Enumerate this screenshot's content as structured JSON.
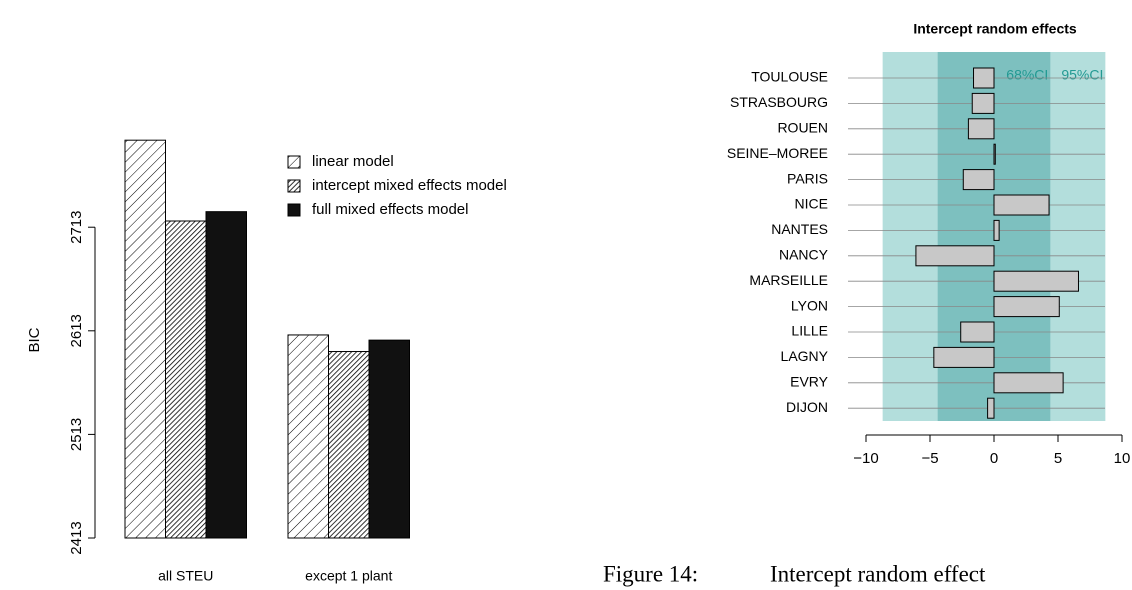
{
  "chart_data": [
    {
      "type": "bar",
      "y_label": "BIC",
      "categories": [
        "all STEU",
        "except 1 plant"
      ],
      "series": [
        {
          "name": "linear model",
          "color": "#000000",
          "pattern": "sparse-hatch",
          "values": [
            2797,
            2609
          ]
        },
        {
          "name": "intercept mixed effects model",
          "color": "#000000",
          "pattern": "dense-hatch",
          "values": [
            2719,
            2593
          ]
        },
        {
          "name": "full mixed effects model",
          "color": "#000000",
          "pattern": "solid",
          "values": [
            2728,
            2604
          ]
        }
      ],
      "ylim": [
        2413,
        2830
      ],
      "yticks": [
        2413,
        2513,
        2613,
        2713
      ],
      "legend": "top-right"
    },
    {
      "type": "barh",
      "title": "Intercept random effects",
      "categories": [
        "TOULOUSE",
        "STRASBOURG",
        "ROUEN",
        "SEINE–MOREE",
        "PARIS",
        "NICE",
        "NANTES",
        "NANCY",
        "MARSEILLE",
        "LYON",
        "LILLE",
        "LAGNY",
        "EVRY",
        "DIJON"
      ],
      "values": [
        -1.6,
        -1.7,
        -2.0,
        0.1,
        -2.4,
        4.3,
        0.4,
        -6.1,
        6.6,
        5.1,
        -2.6,
        -4.7,
        5.4,
        -0.5
      ],
      "color": "#c8c8c8",
      "bands": [
        {
          "label": "95%CI",
          "lower": -8.7,
          "upper": 8.7,
          "color": "#b3dedc"
        },
        {
          "label": "68%CI",
          "lower": -4.4,
          "upper": 4.4,
          "color": "#7dc0bf"
        }
      ],
      "band_label_color": "#239a93",
      "xlim": [
        -10,
        10
      ],
      "xticks": [
        {
          "value": -10,
          "label": "−10"
        },
        {
          "value": -5,
          "label": "−5"
        },
        0,
        5,
        10
      ],
      "grid": true
    }
  ],
  "caption": {
    "label": "Figure 14:",
    "text": "Intercept random effect"
  }
}
